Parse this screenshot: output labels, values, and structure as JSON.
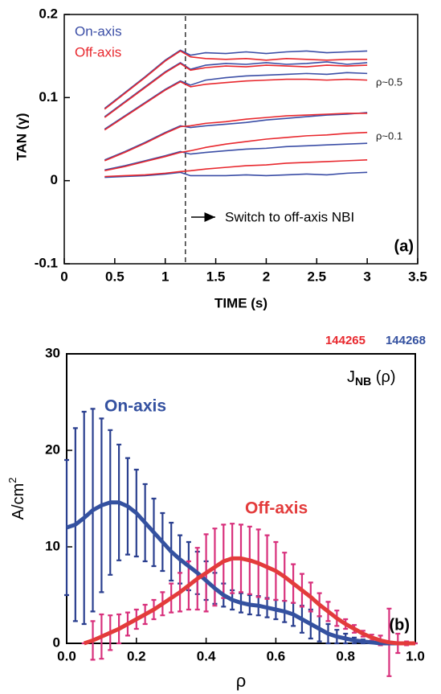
{
  "chart_data": [
    {
      "type": "line",
      "label": "(a)",
      "xlabel": "TIME (s)",
      "ylabel": "TAN (γ)",
      "annotations": [
        "ρ~0.5",
        "ρ~0.1",
        "Switch to off-axis NBI"
      ],
      "switch_time": 1.2,
      "xlim": [
        0,
        3.5
      ],
      "ylim": [
        -0.1,
        0.2
      ],
      "xticks": [
        0,
        0.5,
        1,
        1.5,
        2,
        2.5,
        3,
        3.5
      ],
      "yticks": [
        -0.1,
        0,
        0.1,
        0.2
      ],
      "x": [
        0.4,
        0.6,
        0.8,
        1.0,
        1.15,
        1.25,
        1.4,
        1.6,
        1.8,
        2.0,
        2.2,
        2.4,
        2.6,
        2.8,
        3.0
      ],
      "series": [
        {
          "name": "On-axis",
          "color": "#3b4ea6",
          "lines": [
            [
              0.087,
              0.106,
              0.125,
              0.145,
              0.157,
              0.151,
              0.154,
              0.153,
              0.155,
              0.153,
              0.155,
              0.156,
              0.154,
              0.155,
              0.156
            ],
            [
              0.077,
              0.095,
              0.113,
              0.131,
              0.142,
              0.134,
              0.139,
              0.141,
              0.14,
              0.142,
              0.14,
              0.141,
              0.143,
              0.14,
              0.142
            ],
            [
              0.062,
              0.078,
              0.094,
              0.11,
              0.12,
              0.115,
              0.121,
              0.124,
              0.126,
              0.127,
              0.128,
              0.129,
              0.128,
              0.13,
              0.129
            ],
            [
              0.025,
              0.035,
              0.046,
              0.058,
              0.066,
              0.064,
              0.066,
              0.068,
              0.07,
              0.073,
              0.075,
              0.077,
              0.079,
              0.08,
              0.082
            ],
            [
              0.013,
              0.018,
              0.024,
              0.03,
              0.035,
              0.032,
              0.034,
              0.036,
              0.038,
              0.039,
              0.041,
              0.042,
              0.043,
              0.044,
              0.045
            ],
            [
              0.004,
              0.005,
              0.006,
              0.008,
              0.01,
              0.006,
              0.006,
              0.006,
              0.007,
              0.006,
              0.007,
              0.008,
              0.007,
              0.009,
              0.01
            ]
          ]
        },
        {
          "name": "Off-axis",
          "color": "#e8282e",
          "lines": [
            [
              0.086,
              0.105,
              0.124,
              0.144,
              0.156,
              0.149,
              0.147,
              0.146,
              0.147,
              0.145,
              0.147,
              0.146,
              0.145,
              0.146,
              0.146
            ],
            [
              0.076,
              0.094,
              0.112,
              0.13,
              0.141,
              0.133,
              0.136,
              0.138,
              0.137,
              0.139,
              0.138,
              0.137,
              0.139,
              0.138,
              0.139
            ],
            [
              0.061,
              0.077,
              0.093,
              0.109,
              0.119,
              0.113,
              0.116,
              0.118,
              0.12,
              0.121,
              0.122,
              0.122,
              0.121,
              0.122,
              0.121
            ],
            [
              0.024,
              0.034,
              0.045,
              0.057,
              0.065,
              0.066,
              0.069,
              0.071,
              0.074,
              0.076,
              0.078,
              0.079,
              0.08,
              0.081,
              0.081
            ],
            [
              0.012,
              0.017,
              0.023,
              0.029,
              0.034,
              0.036,
              0.04,
              0.044,
              0.047,
              0.05,
              0.052,
              0.054,
              0.055,
              0.057,
              0.058
            ],
            [
              0.005,
              0.006,
              0.007,
              0.009,
              0.011,
              0.012,
              0.014,
              0.016,
              0.018,
              0.019,
              0.021,
              0.022,
              0.023,
              0.024,
              0.025
            ]
          ]
        }
      ]
    },
    {
      "type": "errorbar-line",
      "label": "(b)",
      "xlabel": "ρ",
      "ylabel": {
        "main": "A/cm",
        "sup": "2"
      },
      "title": {
        "main": "J",
        "sub": "NB",
        "tail": " (ρ)"
      },
      "xlim": [
        0,
        1
      ],
      "ylim": [
        0,
        30
      ],
      "xticks": [
        {
          "value": 0,
          "label": "0.0"
        },
        0.2,
        0.4,
        0.6,
        0.8,
        {
          "value": 1,
          "label": "1.0"
        }
      ],
      "yticks": [
        0,
        10,
        20,
        30
      ],
      "series": [
        {
          "name": "On-axis",
          "shot": "144268",
          "color": "#3451a0",
          "error_color": "#2a3f8f",
          "x": [
            0,
            0.025,
            0.05,
            0.075,
            0.1,
            0.125,
            0.15,
            0.175,
            0.2,
            0.225,
            0.25,
            0.275,
            0.3,
            0.325,
            0.35,
            0.375,
            0.4,
            0.425,
            0.45,
            0.475,
            0.5,
            0.525,
            0.55,
            0.575,
            0.6,
            0.625,
            0.65,
            0.675,
            0.7,
            0.725,
            0.75,
            0.775,
            0.8,
            0.825,
            0.85,
            0.875,
            0.9,
            0.925,
            0.95,
            0.975,
            1.0
          ],
          "values": [
            12,
            12.3,
            13,
            13.8,
            14.3,
            14.6,
            14.6,
            14.2,
            13.5,
            12.5,
            11.5,
            10.5,
            9.5,
            8.7,
            8,
            7.3,
            6.5,
            5.7,
            5,
            4.5,
            4.2,
            4,
            3.9,
            3.7,
            3.5,
            3.3,
            3,
            2.5,
            2,
            1.5,
            1,
            0.7,
            0.5,
            0.3,
            0.2,
            0.1,
            0,
            0,
            0,
            0,
            0
          ],
          "errors": [
            7,
            10,
            11,
            10.5,
            9,
            7.5,
            6,
            5,
            4.5,
            4,
            3.5,
            3,
            3,
            2.5,
            2.5,
            2.2,
            2,
            1.6,
            1.2,
            1,
            1,
            1,
            1,
            1,
            1,
            1.1,
            1.2,
            1.4,
            1.5,
            1.3,
            1,
            0.7,
            0.5,
            0.3,
            0.2,
            0.1,
            0,
            0,
            0,
            0,
            0
          ]
        },
        {
          "name": "Off-axis",
          "shot": "144265",
          "color": "#e33b3b",
          "error_color": "#d8307c",
          "x": [
            0.05,
            0.075,
            0.1,
            0.125,
            0.15,
            0.175,
            0.2,
            0.225,
            0.25,
            0.275,
            0.3,
            0.325,
            0.35,
            0.375,
            0.4,
            0.425,
            0.45,
            0.475,
            0.5,
            0.525,
            0.55,
            0.575,
            0.6,
            0.625,
            0.65,
            0.675,
            0.7,
            0.725,
            0.75,
            0.775,
            0.8,
            0.825,
            0.85,
            0.875,
            0.9,
            0.925,
            0.95,
            0.975,
            1.0
          ],
          "values": [
            0,
            0.3,
            0.7,
            1.1,
            1.5,
            2,
            2.5,
            3,
            3.5,
            4.1,
            4.7,
            5.3,
            6,
            6.7,
            7.3,
            7.9,
            8.5,
            8.8,
            8.8,
            8.6,
            8.3,
            7.9,
            7.5,
            6.9,
            6.2,
            5.5,
            4.8,
            4,
            3.3,
            2.6,
            2,
            1.5,
            1,
            0.6,
            0.3,
            0.1,
            0,
            0,
            0
          ],
          "errors": [
            0,
            2,
            2.3,
            1.8,
            1.5,
            1.2,
            1,
            1,
            1,
            1.2,
            1.5,
            2,
            2.5,
            3.2,
            4,
            4,
            3.8,
            3.6,
            3.5,
            3.5,
            3.5,
            3.3,
            3,
            2.5,
            2,
            1.7,
            1.5,
            1.2,
            1,
            0.8,
            0.5,
            0.4,
            0.3,
            0.3,
            0.5,
            3.5,
            1,
            0.2,
            0
          ]
        }
      ]
    }
  ]
}
